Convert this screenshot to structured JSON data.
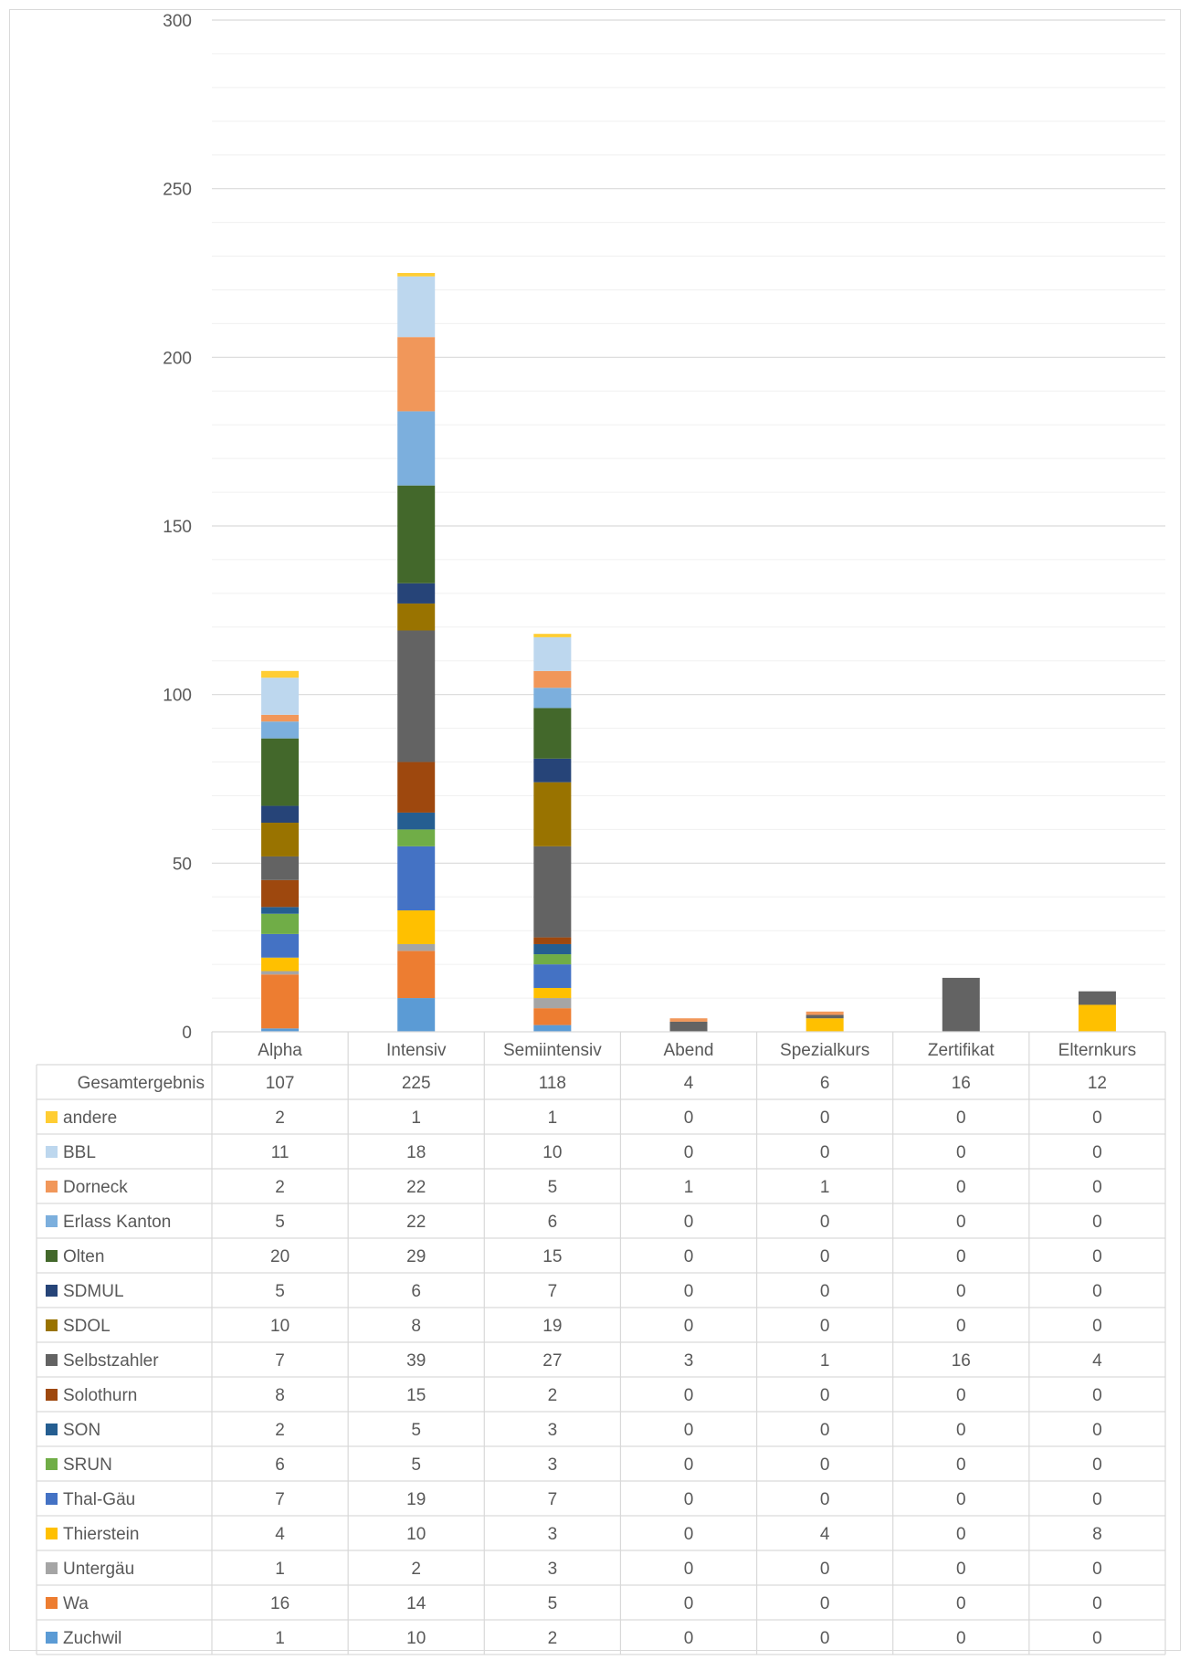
{
  "chart_data": {
    "type": "bar",
    "stacked": true,
    "data_table": true,
    "categories": [
      "Alpha",
      "Intensiv",
      "Semiintensiv",
      "Abend",
      "Spezialkurs",
      "Zertifikat",
      "Elternkurs"
    ],
    "ylim": [
      0,
      300
    ],
    "yticks": [
      0,
      50,
      100,
      150,
      200,
      250,
      300
    ],
    "grid": true,
    "legend_position": "table",
    "total_row": {
      "name": "Gesamtergebnis",
      "values": [
        107,
        225,
        118,
        4,
        6,
        16,
        12
      ]
    },
    "series": [
      {
        "name": "Zuchwil",
        "color": "#5b9bd5",
        "values": [
          1,
          10,
          2,
          0,
          0,
          0,
          0
        ]
      },
      {
        "name": "Wa",
        "color": "#ed7d31",
        "values": [
          16,
          14,
          5,
          0,
          0,
          0,
          0
        ]
      },
      {
        "name": "Untergäu",
        "color": "#a5a5a5",
        "values": [
          1,
          2,
          3,
          0,
          0,
          0,
          0
        ]
      },
      {
        "name": "Thierstein",
        "color": "#ffc000",
        "values": [
          4,
          10,
          3,
          0,
          4,
          0,
          8
        ]
      },
      {
        "name": "Thal-Gäu",
        "color": "#4472c4",
        "values": [
          7,
          19,
          7,
          0,
          0,
          0,
          0
        ]
      },
      {
        "name": "SRUN",
        "color": "#70ad47",
        "values": [
          6,
          5,
          3,
          0,
          0,
          0,
          0
        ]
      },
      {
        "name": "SON",
        "color": "#255e91",
        "values": [
          2,
          5,
          3,
          0,
          0,
          0,
          0
        ]
      },
      {
        "name": "Solothurn",
        "color": "#9e480e",
        "values": [
          8,
          15,
          2,
          0,
          0,
          0,
          0
        ]
      },
      {
        "name": "Selbstzahler",
        "color": "#636363",
        "values": [
          7,
          39,
          27,
          3,
          1,
          16,
          4
        ]
      },
      {
        "name": "SDOL",
        "color": "#997300",
        "values": [
          10,
          8,
          19,
          0,
          0,
          0,
          0
        ]
      },
      {
        "name": "SDMUL",
        "color": "#264478",
        "values": [
          5,
          6,
          7,
          0,
          0,
          0,
          0
        ]
      },
      {
        "name": "Olten",
        "color": "#43682b",
        "values": [
          20,
          29,
          15,
          0,
          0,
          0,
          0
        ]
      },
      {
        "name": "Erlass Kanton",
        "color": "#7cafdd",
        "values": [
          5,
          22,
          6,
          0,
          0,
          0,
          0
        ]
      },
      {
        "name": "Dorneck",
        "color": "#f1975a",
        "values": [
          2,
          22,
          5,
          1,
          1,
          0,
          0
        ]
      },
      {
        "name": "BBL",
        "color": "#bdd7ee",
        "values": [
          11,
          18,
          10,
          0,
          0,
          0,
          0
        ]
      },
      {
        "name": "andere",
        "color": "#ffcd33",
        "values": [
          2,
          1,
          1,
          0,
          0,
          0,
          0
        ]
      }
    ]
  }
}
